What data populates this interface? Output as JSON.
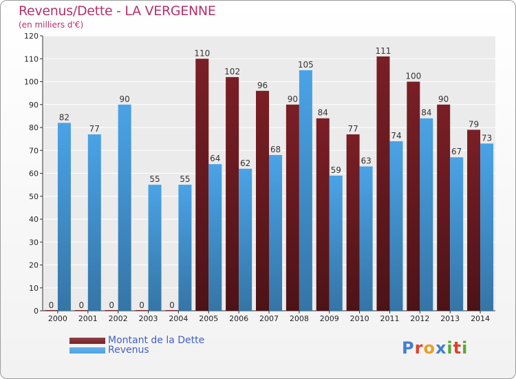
{
  "header": {
    "title": "Revenus/Dette - LA VERGENNE",
    "subtitle": "(en milliers d'€)"
  },
  "colors": {
    "title": "#b5306b",
    "legend_text": "#3f5fc8",
    "dette": "#7a1f25",
    "revenus": "#4aa3e6"
  },
  "brand": {
    "text": "Proxiti",
    "letter_colors": [
      "#3f7fd0",
      "#e0402a",
      "#e9a020",
      "#3f7fd0",
      "#5aa83a",
      "#e0402a",
      "#5aa83a"
    ]
  },
  "chart_data": {
    "type": "bar",
    "categories": [
      "2000",
      "2001",
      "2002",
      "2003",
      "2004",
      "2005",
      "2006",
      "2007",
      "2008",
      "2009",
      "2010",
      "2011",
      "2012",
      "2013",
      "2014"
    ],
    "series": [
      {
        "name": "Montant de la Dette",
        "color": "#7a1f25",
        "values": [
          0,
          0,
          0,
          0,
          0,
          110,
          102,
          96,
          90,
          84,
          77,
          111,
          100,
          90,
          79
        ]
      },
      {
        "name": "Revenus",
        "color": "#4aa3e6",
        "values": [
          82,
          77,
          90,
          55,
          55,
          64,
          62,
          68,
          105,
          59,
          63,
          74,
          84,
          67,
          73
        ]
      }
    ],
    "ylim": [
      0,
      120
    ],
    "yticks": [
      0,
      10,
      20,
      30,
      40,
      50,
      60,
      70,
      80,
      90,
      100,
      110,
      120
    ],
    "grid": true,
    "legend_position": "bottom-left"
  }
}
